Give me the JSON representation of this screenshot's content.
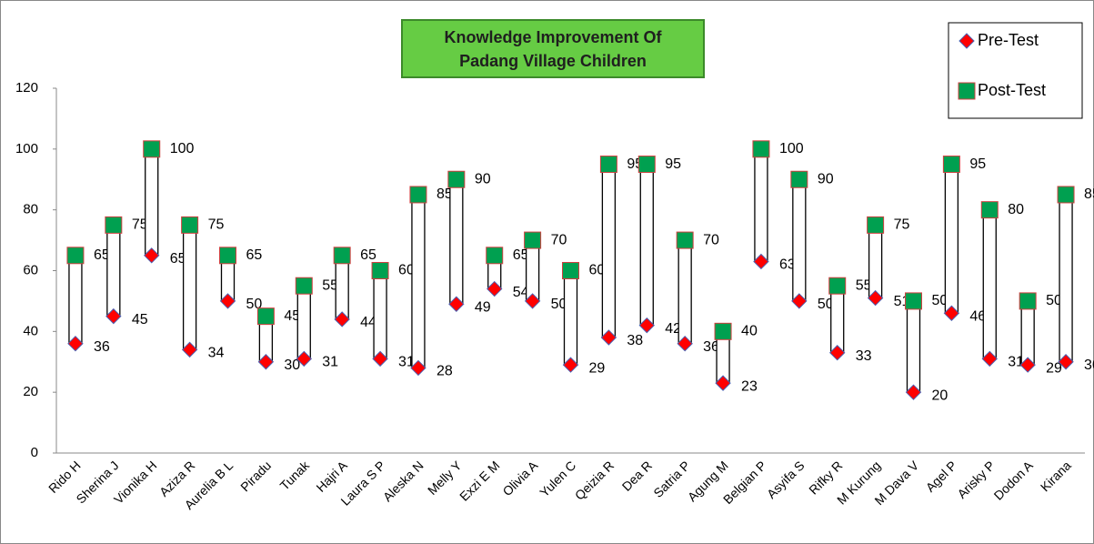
{
  "chart_data": {
    "type": "high-low",
    "title": "Knowledge Improvement Of Padang Village Children",
    "categories": [
      "Rido H",
      "Sherina J",
      "Vionika H",
      "Aziza R",
      "Aurelia B L",
      "Piradu",
      "Tunak",
      "Hajri A",
      "Laura S P",
      "Aleska N",
      "Melly Y",
      "Exzi E M",
      "Olivia A",
      "Yulen C",
      "Qeizia R",
      "Dea R",
      "Satria P",
      "Agung M",
      "Belgian P",
      "Asyifa S",
      "Rifky R",
      "M Kurung",
      "M Dava V",
      "Agel P",
      "Arisky P",
      "Dodon A",
      "Kirana"
    ],
    "series": [
      {
        "name": "Pre-Test",
        "color": "#ff0000",
        "values": [
          36,
          45,
          65,
          34,
          50,
          30,
          31,
          44,
          31,
          28,
          49,
          54,
          50,
          29,
          38,
          42,
          36,
          23,
          63,
          50,
          33,
          51,
          20,
          46,
          31,
          29,
          30
        ]
      },
      {
        "name": "Post-Test",
        "color": "#00a050",
        "values": [
          65,
          75,
          100,
          75,
          65,
          45,
          55,
          65,
          60,
          85,
          90,
          65,
          70,
          60,
          95,
          95,
          70,
          40,
          100,
          90,
          55,
          75,
          50,
          95,
          80,
          50,
          85
        ]
      }
    ],
    "ylim": [
      0,
      120
    ],
    "yticks": [
      0,
      20,
      40,
      60,
      80,
      100,
      120
    ],
    "legend": "top-right"
  }
}
